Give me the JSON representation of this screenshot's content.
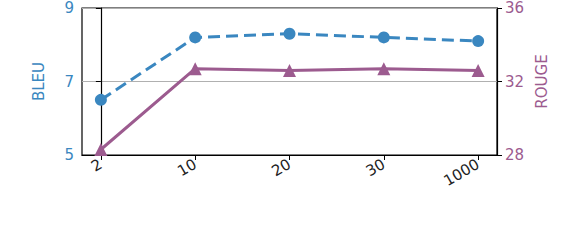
{
  "chart_data": {
    "type": "line",
    "categories": [
      "2",
      "10",
      "20",
      "30",
      "1000"
    ],
    "y_label": "BLEU",
    "y2_label": "ROUGE",
    "series": [
      {
        "name": "BLEU",
        "color": "#3a87c0",
        "values": [
          6.5,
          8.2,
          8.3,
          8.2,
          8.1
        ],
        "marker": "circle",
        "line_style": "dashed"
      },
      {
        "name": "ROUGE",
        "color": "#9c5b8f",
        "values": [
          28.3,
          32.7,
          32.6,
          32.7,
          32.6
        ],
        "axis": "y2",
        "marker": "triangle",
        "line_style": "solid"
      }
    ],
    "ylim": [
      5,
      9
    ],
    "yticks": [
      5,
      7,
      9
    ],
    "y2lim": [
      28,
      36
    ],
    "y2ticks": [
      28,
      32,
      36
    ],
    "grid": true
  }
}
